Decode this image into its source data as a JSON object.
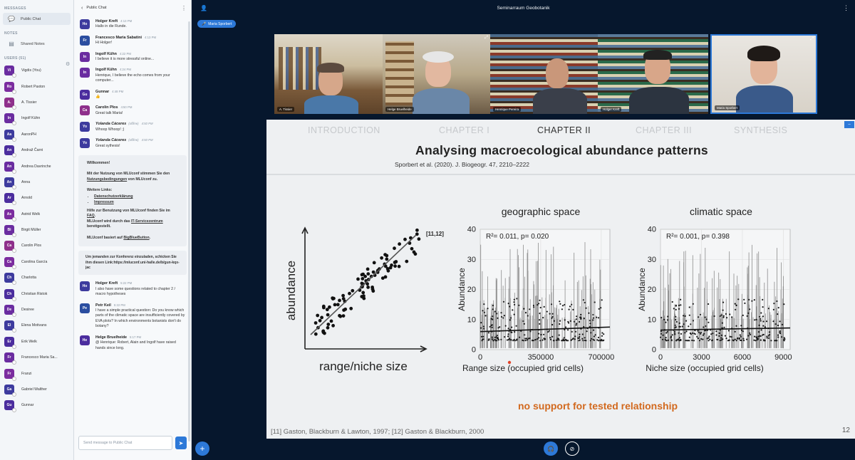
{
  "sidebar": {
    "messages_heading": "MESSAGES",
    "public_chat_label": "Public Chat",
    "notes_heading": "NOTES",
    "shared_notes_label": "Shared Notes",
    "users_heading": "USERS (51)",
    "users": [
      {
        "initials": "Vi",
        "name": "Vigdis (You)",
        "color": "#6a2ca0"
      },
      {
        "initials": "Ro",
        "name": "Robert Paxton",
        "color": "#7b2c9f"
      },
      {
        "initials": "A.",
        "name": "A. Tissier",
        "color": "#8e2f8b"
      },
      {
        "initials": "In",
        "name": "Ingolf Kühn",
        "color": "#6a2ca0"
      },
      {
        "initials": "Aa",
        "name": "AaronPH",
        "color": "#3d3b9e"
      },
      {
        "initials": "An",
        "name": "Andraž Čarni",
        "color": "#4b2d9e"
      },
      {
        "initials": "An",
        "name": "Andrea Davrinche",
        "color": "#6a2ca0"
      },
      {
        "initials": "An",
        "name": "Anna",
        "color": "#3d3b9e"
      },
      {
        "initials": "Ar",
        "name": "Arnold",
        "color": "#4b2d9e"
      },
      {
        "initials": "As",
        "name": "Astrid Welk",
        "color": "#7b2c9f"
      },
      {
        "initials": "Bi",
        "name": "Birgit Müller",
        "color": "#6a2ca0"
      },
      {
        "initials": "Ca",
        "name": "Carolin Plos",
        "color": "#8e2f8b"
      },
      {
        "initials": "Ca",
        "name": "Carolina García",
        "color": "#7b2c9f"
      },
      {
        "initials": "Ch",
        "name": "Charlotta",
        "color": "#3d3b9e"
      },
      {
        "initials": "Ch",
        "name": "Christian Ristok",
        "color": "#4b2d9e"
      },
      {
        "initials": "De",
        "name": "Desiree",
        "color": "#6a2ca0"
      },
      {
        "initials": "El",
        "name": "Elena Motivans",
        "color": "#3d3b9e"
      },
      {
        "initials": "Er",
        "name": "Erik Welk",
        "color": "#4b2d9e"
      },
      {
        "initials": "Fr",
        "name": "Francesco Maria Sa...",
        "color": "#6a2ca0"
      },
      {
        "initials": "Fr",
        "name": "Franzi",
        "color": "#7b2c9f"
      },
      {
        "initials": "Ga",
        "name": "Gabriel Walther",
        "color": "#3d3b9e"
      },
      {
        "initials": "Gu",
        "name": "Gunnar",
        "color": "#4b2d9e"
      }
    ]
  },
  "chat": {
    "title": "Public Chat",
    "back_label": "‹",
    "messages_top": [
      {
        "initials": "Ho",
        "name": "Holger Kreft",
        "time": "4:13 PM",
        "text": "Hallo in die Runde.",
        "color": "#3d3b9e"
      },
      {
        "initials": "Fr",
        "name": "Francesco Maria Sabatini",
        "time": "4:13 PM",
        "text": "Hi Holger!",
        "color": "#2b4ea0"
      },
      {
        "initials": "In",
        "name": "Ingolf Kühn",
        "time": "4:22 PM",
        "text": "I believe it is more stressful online...",
        "color": "#6a2ca0"
      },
      {
        "initials": "In",
        "name": "Ingolf Kühn",
        "time": "4:24 PM",
        "text": "Henrique, I believe the echo comes from your computer...",
        "color": "#6a2ca0"
      },
      {
        "initials": "Gu",
        "name": "Gunnar",
        "time": "4:48 PM",
        "text": "👍",
        "color": "#4b2d9e"
      },
      {
        "initials": "Ca",
        "name": "Carolin Plos",
        "time": "4:50 PM",
        "text": "Great talk Maria!",
        "color": "#8e2f8b"
      },
      {
        "initials": "Yo",
        "name": "Yolanda Cáceres",
        "offline": "(offline)",
        "time": "4:50 PM",
        "text": "Whoop Whoop! ;)",
        "color": "#3d3b9e"
      },
      {
        "initials": "Yo",
        "name": "Yolanda Cáceres",
        "offline": "(offline)",
        "time": "4:50 PM",
        "text": "Great sythesis!",
        "color": "#3d3b9e"
      }
    ],
    "welcome": {
      "heading": "Willkommen!",
      "p1_a": "Mit der Nutzung von MLUconf stimmen Sie den",
      "p1_link": "Nutzungsbedingungen",
      "p1_b": "von MLUconf zu.",
      "links_heading": "Weitere Links:",
      "link1": "Datenschutzerklärung",
      "link2": "Impressum",
      "help_a": "Hilfe zur Benutzung von MLUconf finden Sie im",
      "help_link": "FAQ",
      "help_b": "MLUconf wird durch das",
      "help_link2": "IT-Servicezentrum",
      "help_c": "bereitgestellt.",
      "based_a": "MLUconf basiert auf",
      "based_link": "BigBlueButton"
    },
    "invite": "Um jemanden zur Konferenz einzuladen, schicken Sie ihm diesen Link:https://mluconf.uni-halle.de/b/gun-kqx-jac",
    "messages_bottom": [
      {
        "initials": "Ho",
        "name": "Holger Kreft",
        "time": "5:22 PM",
        "text": "I also have some questions related to chapter 2 / macro hypotheses",
        "color": "#3d3b9e"
      },
      {
        "initials": "Pe",
        "name": "Petr Keil",
        "time": "5:22 PM",
        "text": "I have a simple practical question: Do you know which parts of the climatic space are insufficiently covered by EVA plots? In which environments botanists don't do botany?",
        "color": "#2b4ea0"
      },
      {
        "initials": "He",
        "name": "Helge Bruelheide",
        "time": "5:17 PM",
        "text": "@ Henrique: Robert, Alain and Ingolf have raised hands since long.",
        "color": "#4b2d9e"
      }
    ],
    "input_placeholder": "Send message to Public Chat"
  },
  "conference": {
    "title": "Seminarraum Geobotanik",
    "presenter_pill": "Maria Sporbert",
    "cams": [
      {
        "label": "A. Tissier"
      },
      {
        "label": "Helge Bruelheide"
      },
      {
        "label": "Henrique Pereira"
      },
      {
        "label": "Holger Kreft"
      },
      {
        "label": "Maria Sporbert"
      }
    ]
  },
  "slide": {
    "nav": [
      "INTRODUCTION",
      "CHAPTER I",
      "CHAPTER II",
      "CHAPTER III",
      "SYNTHESIS"
    ],
    "active_nav": 2,
    "title": "Analysing macroecological abundance patterns",
    "reference": "Sporbert et al. (2020). J. Biogeogr. 47, 2210–2222",
    "schematic_ylabel": "abundance",
    "schematic_xlabel": "range/niche size",
    "citation_marker": "[11,12]",
    "conclusion": "no support for tested relationship",
    "footer_ref": "[11] Gaston, Blackburn & Lawton, 1997; [12] Gaston & Blackburn, 2000",
    "page_number": "12"
  },
  "chart_data": [
    {
      "type": "scatter",
      "title": "geographic space",
      "annotation": "R²= 0.011, p= 0.020",
      "xlabel": "Range size (occupied grid cells)",
      "ylabel": "Abundance",
      "xlim": [
        0,
        750000
      ],
      "ylim": [
        0,
        40
      ],
      "xticks": [
        0,
        350000,
        700000
      ],
      "yticks": [
        0,
        10,
        20,
        30,
        40
      ],
      "trend": {
        "x": [
          0,
          750000
        ],
        "y": [
          6,
          7.5
        ]
      }
    },
    {
      "type": "scatter",
      "title": "climatic space",
      "annotation": "R²= 0.001, p= 0.398",
      "xlabel": "Niche size (occupied grid cells)",
      "ylabel": "Abundance",
      "xlim": [
        0,
        9500
      ],
      "ylim": [
        0,
        40
      ],
      "xticks": [
        0,
        3000,
        6000,
        9000
      ],
      "yticks": [
        0,
        10,
        20,
        30,
        40
      ],
      "trend": {
        "x": [
          0,
          9500
        ],
        "y": [
          6.5,
          7.2
        ]
      }
    }
  ]
}
